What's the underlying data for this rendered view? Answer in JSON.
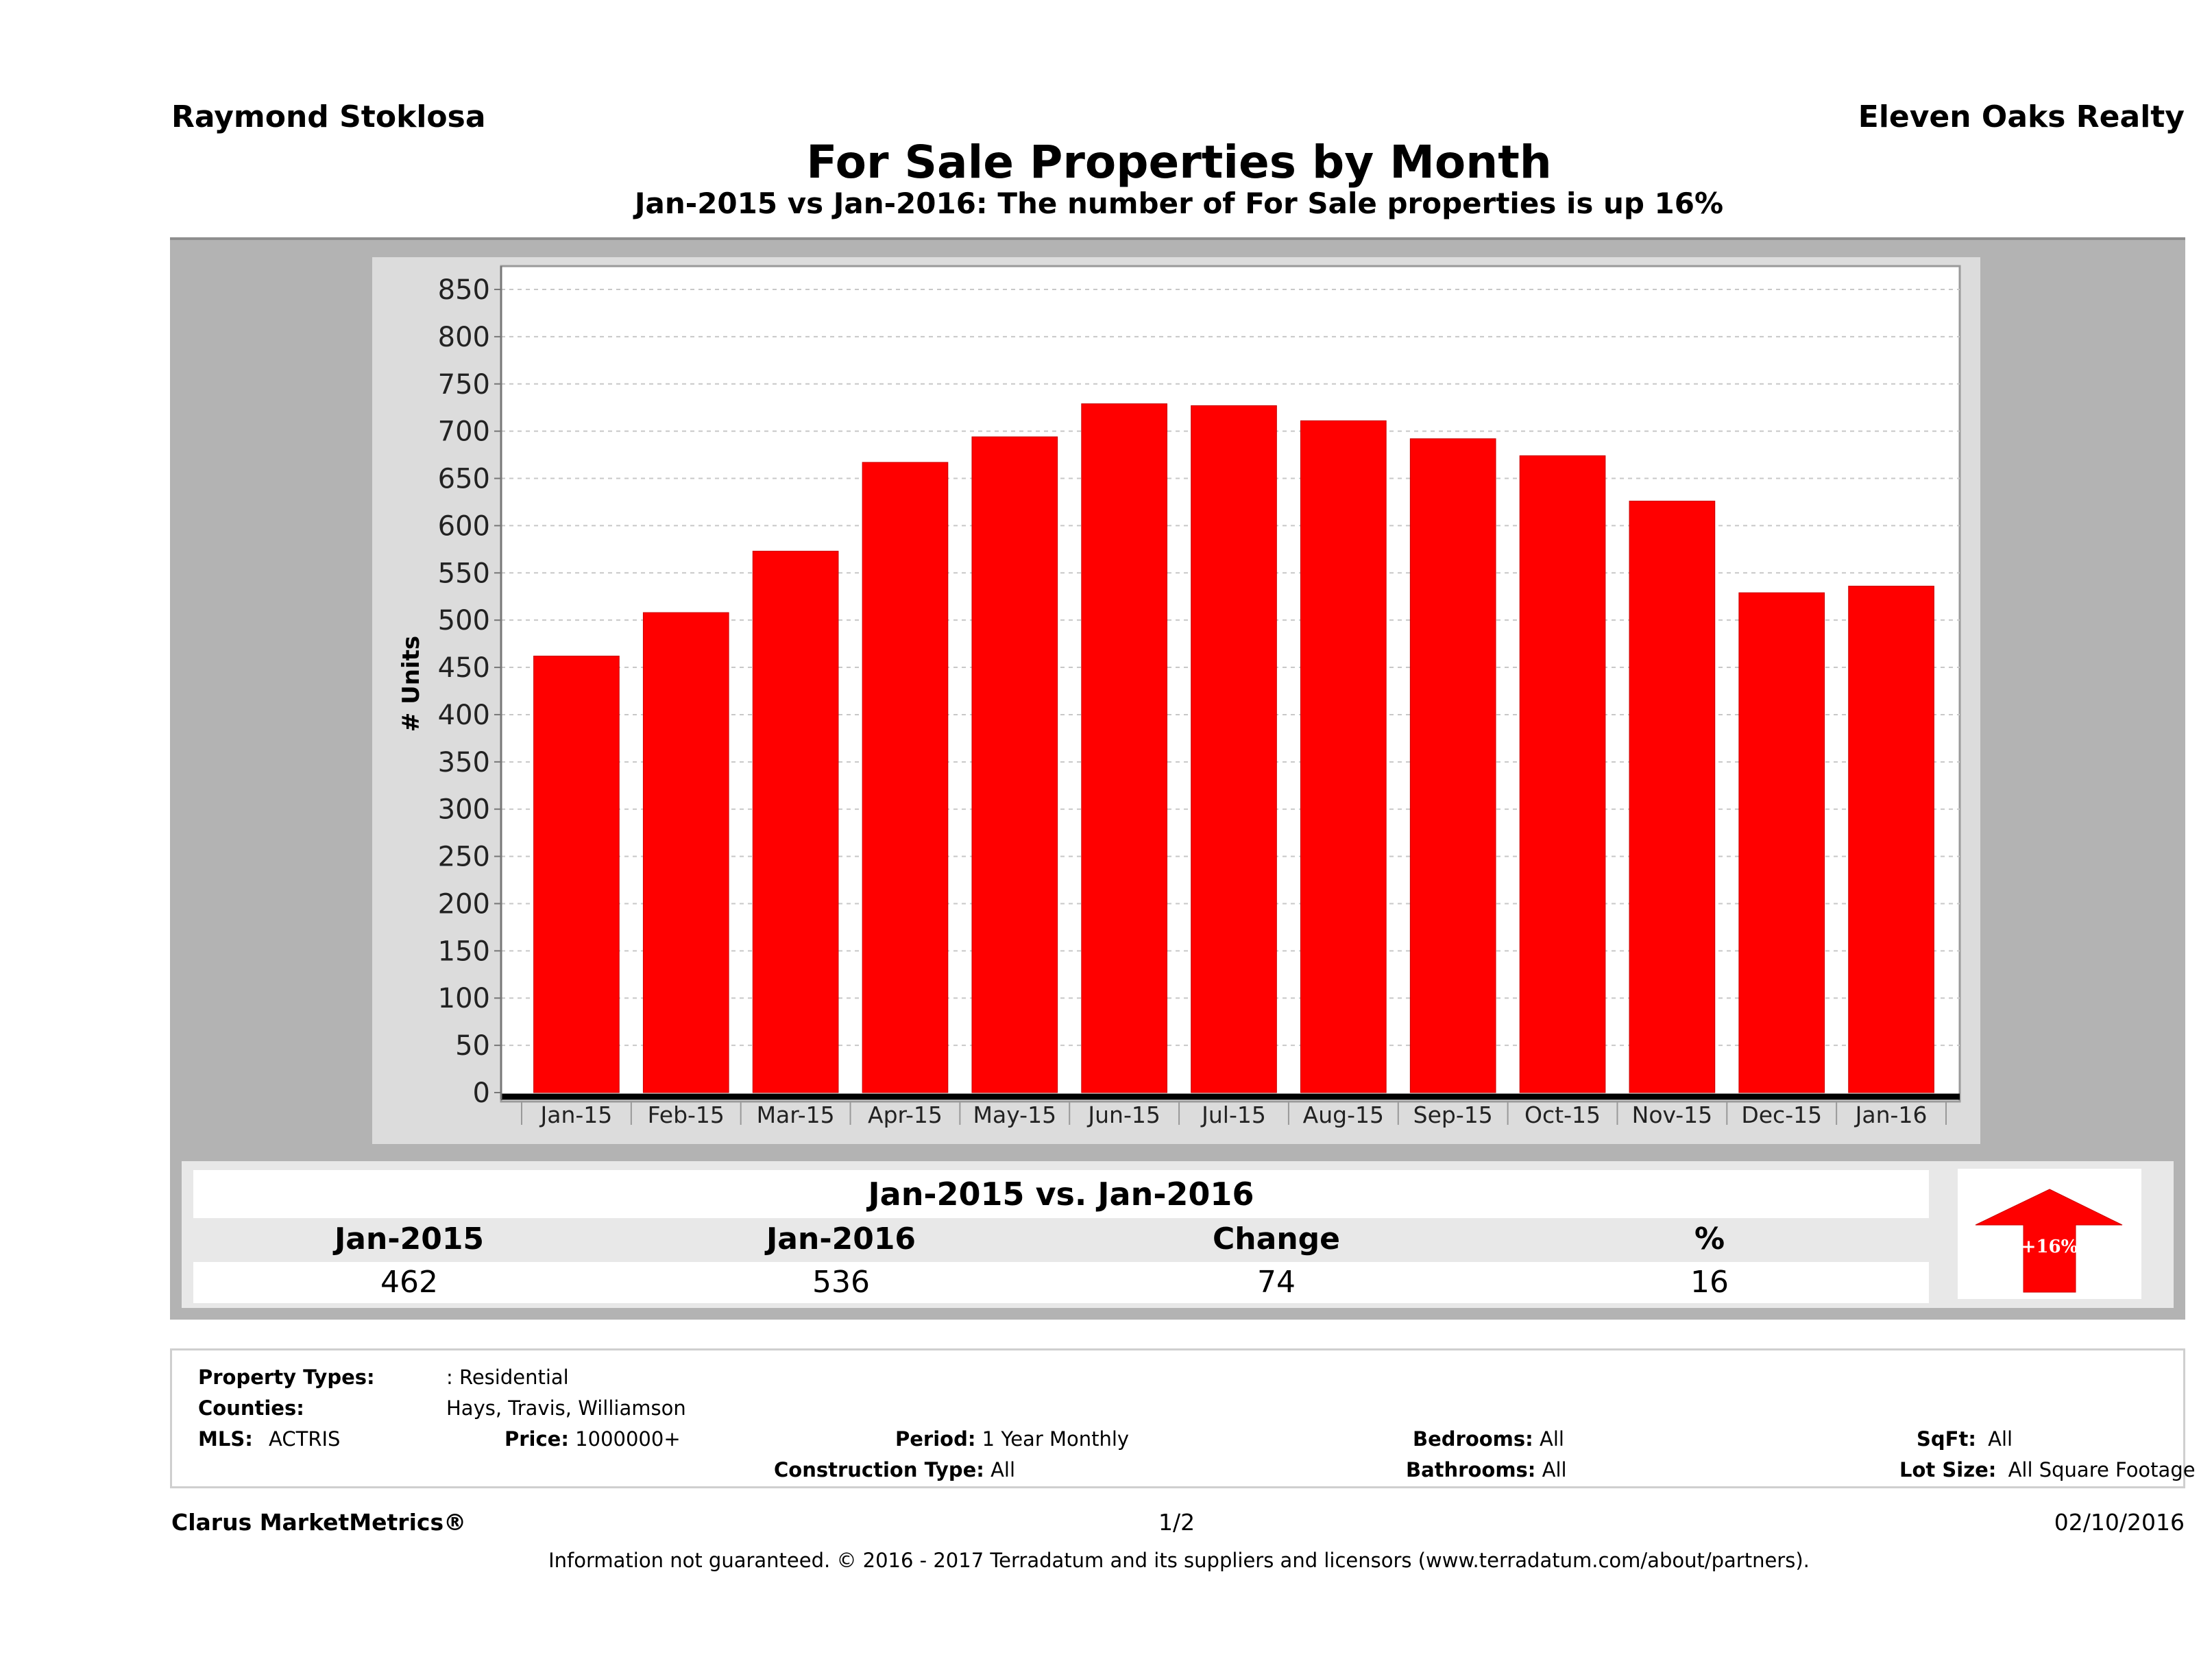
{
  "header": {
    "agent_name": "Raymond Stoklosa",
    "brokerage": "Eleven Oaks Realty",
    "title": "For Sale Properties by Month",
    "subtitle": "Jan-2015 vs Jan-2016: The number of For Sale  properties is up 16%"
  },
  "chart_data": {
    "type": "bar",
    "title": "For Sale Properties by Month",
    "xlabel": "",
    "ylabel": "# Units",
    "categories": [
      "Jan-15",
      "Feb-15",
      "Mar-15",
      "Apr-15",
      "May-15",
      "Jun-15",
      "Jul-15",
      "Aug-15",
      "Sep-15",
      "Oct-15",
      "Nov-15",
      "Dec-15",
      "Jan-16"
    ],
    "values": [
      462,
      508,
      573,
      667,
      694,
      729,
      727,
      711,
      692,
      674,
      626,
      529,
      536
    ],
    "ylim": [
      0,
      850
    ],
    "yticks": [
      0,
      50,
      100,
      150,
      200,
      250,
      300,
      350,
      400,
      450,
      500,
      550,
      600,
      650,
      700,
      750,
      800,
      850
    ],
    "grid": true,
    "legend": "none",
    "bar_color": "#ff0000"
  },
  "summary": {
    "title": "Jan-2015 vs. Jan-2016",
    "headers": [
      "Jan-2015",
      "Jan-2016",
      "Change",
      "%"
    ],
    "values": [
      "462",
      "536",
      "74",
      "16"
    ],
    "badge": {
      "label": "+16%",
      "direction": "up",
      "color": "#ff0000"
    }
  },
  "filters": {
    "property_types": {
      "label": "Property Types:",
      "value": ": Residential"
    },
    "counties": {
      "label": "Counties:",
      "value": "Hays, Travis, Williamson"
    },
    "mls": {
      "label": "MLS:",
      "value": "ACTRIS"
    },
    "price": {
      "label": "Price:",
      "value": "1000000+"
    },
    "period": {
      "label": "Period:",
      "value": "1 Year Monthly"
    },
    "construction_type": {
      "label": "Construction Type:",
      "value": "All"
    },
    "bedrooms": {
      "label": "Bedrooms:",
      "value": "All"
    },
    "bathrooms": {
      "label": "Bathrooms:",
      "value": "All"
    },
    "sqft": {
      "label": "SqFt:",
      "value": "All"
    },
    "lot_size": {
      "label": "Lot Size:",
      "value": "All Square Footage"
    }
  },
  "footer": {
    "product": "Clarus MarketMetrics®",
    "page": "1/2",
    "date": "02/10/2016",
    "disclaimer": "Information not guaranteed. © 2016 - 2017 Terradatum and its suppliers and licensors (www.terradatum.com/about/partners)."
  }
}
